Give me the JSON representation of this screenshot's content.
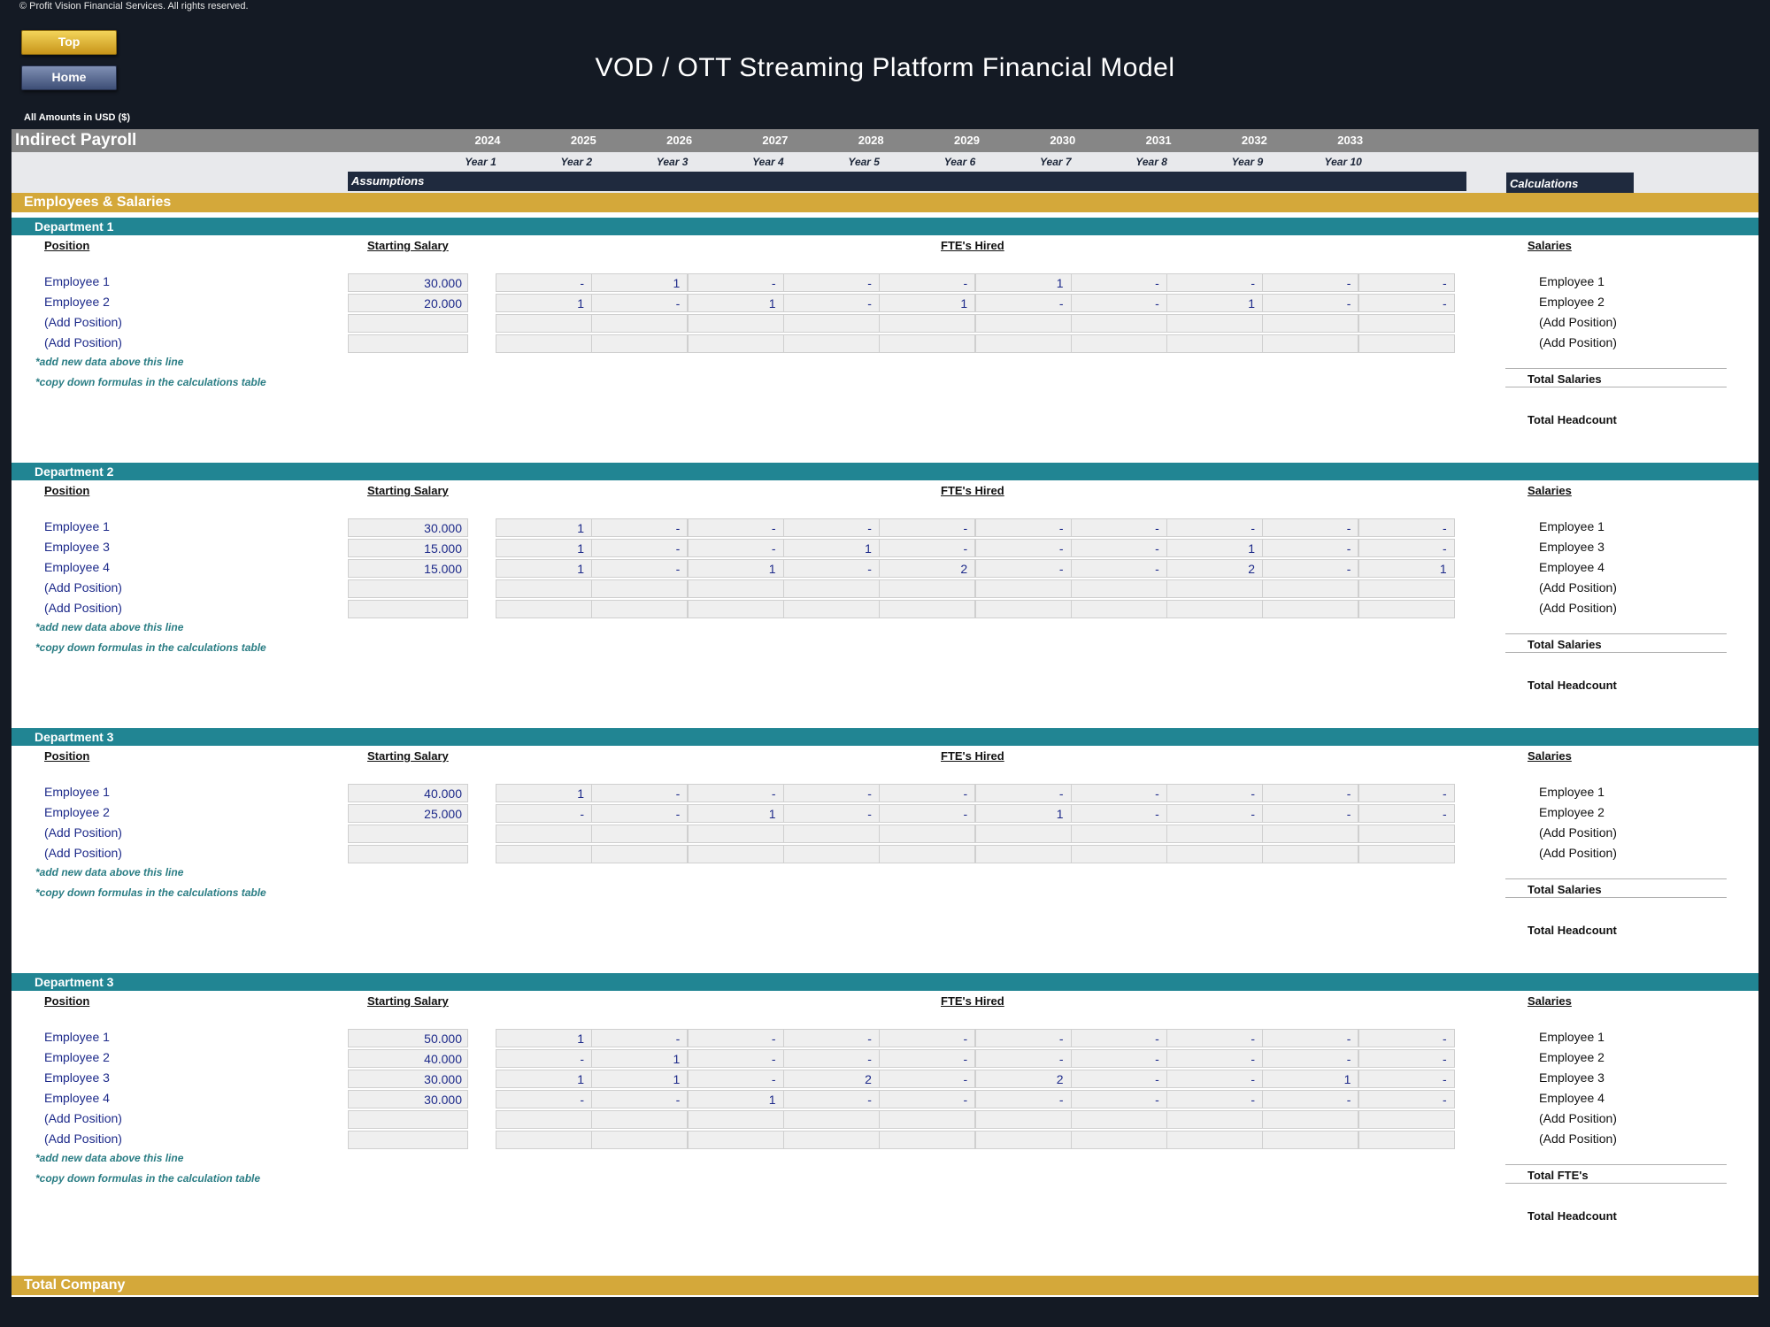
{
  "copyright": "© Profit Vision Financial Services. All rights reserved.",
  "buttons": {
    "top": "Top",
    "home": "Home"
  },
  "title": "VOD / OTT Streaming Platform Financial Model",
  "amounts_note": "All Amounts in  USD ($)",
  "sheet": {
    "name": "Indirect Payroll",
    "years": [
      "2024",
      "2025",
      "2026",
      "2027",
      "2028",
      "2029",
      "2030",
      "2031",
      "2032",
      "2033"
    ],
    "year_labels": [
      "Year 1",
      "Year 2",
      "Year 3",
      "Year 4",
      "Year 5",
      "Year 6",
      "Year 7",
      "Year 8",
      "Year 9",
      "Year 10"
    ],
    "assumptions_label": "Assumptions",
    "calculations_label": "Calculations"
  },
  "section_title": "Employees & Salaries",
  "column_headers": {
    "position": "Position",
    "starting_salary": "Starting Salary",
    "ftes_hired": "FTE's Hired",
    "salaries": "Salaries"
  },
  "departments": [
    {
      "name": "Department 1",
      "rows": [
        {
          "position": "Employee 1",
          "salary": "30.000",
          "fte": [
            "-",
            "1",
            "-",
            "-",
            "-",
            "1",
            "-",
            "-",
            "-",
            "-"
          ]
        },
        {
          "position": "Employee 2",
          "salary": "20.000",
          "fte": [
            "1",
            "-",
            "1",
            "-",
            "1",
            "-",
            "-",
            "1",
            "-",
            "-"
          ]
        },
        {
          "position": "(Add Position)",
          "salary": "",
          "fte": [
            "",
            "",
            "",
            "",
            "",
            "",
            "",
            "",
            "",
            ""
          ]
        },
        {
          "position": "(Add Position)",
          "salary": "",
          "fte": [
            "",
            "",
            "",
            "",
            "",
            "",
            "",
            "",
            "",
            ""
          ]
        }
      ],
      "notes": [
        "*add new data above this line",
        "*copy down formulas in the calculations table"
      ],
      "total_label": "Total Salaries",
      "headcount_label": "Total Headcount"
    },
    {
      "name": "Department 2",
      "rows": [
        {
          "position": "Employee 1",
          "salary": "30.000",
          "fte": [
            "1",
            "-",
            "-",
            "-",
            "-",
            "-",
            "-",
            "-",
            "-",
            "-"
          ]
        },
        {
          "position": "Employee 3",
          "salary": "15.000",
          "fte": [
            "1",
            "-",
            "-",
            "1",
            "-",
            "-",
            "-",
            "1",
            "-",
            "-"
          ]
        },
        {
          "position": "Employee 4",
          "salary": "15.000",
          "fte": [
            "1",
            "-",
            "1",
            "-",
            "2",
            "-",
            "-",
            "2",
            "-",
            "1"
          ]
        },
        {
          "position": "(Add Position)",
          "salary": "",
          "fte": [
            "",
            "",
            "",
            "",
            "",
            "",
            "",
            "",
            "",
            ""
          ]
        },
        {
          "position": "(Add Position)",
          "salary": "",
          "fte": [
            "",
            "",
            "",
            "",
            "",
            "",
            "",
            "",
            "",
            ""
          ]
        }
      ],
      "notes": [
        "*add new data above this line",
        "*copy down formulas in the calculations table"
      ],
      "total_label": "Total Salaries",
      "headcount_label": "Total Headcount"
    },
    {
      "name": "Department 3",
      "rows": [
        {
          "position": "Employee 1",
          "salary": "40.000",
          "fte": [
            "1",
            "-",
            "-",
            "-",
            "-",
            "-",
            "-",
            "-",
            "-",
            "-"
          ]
        },
        {
          "position": "Employee 2",
          "salary": "25.000",
          "fte": [
            "-",
            "-",
            "1",
            "-",
            "-",
            "1",
            "-",
            "-",
            "-",
            "-"
          ]
        },
        {
          "position": "(Add Position)",
          "salary": "",
          "fte": [
            "",
            "",
            "",
            "",
            "",
            "",
            "",
            "",
            "",
            ""
          ]
        },
        {
          "position": "(Add Position)",
          "salary": "",
          "fte": [
            "",
            "",
            "",
            "",
            "",
            "",
            "",
            "",
            "",
            ""
          ]
        }
      ],
      "notes": [
        "*add new data above this line",
        "*copy down formulas in the calculations table"
      ],
      "total_label": "Total Salaries",
      "headcount_label": "Total Headcount"
    },
    {
      "name": "Department 3",
      "rows": [
        {
          "position": "Employee 1",
          "salary": "50.000",
          "fte": [
            "1",
            "-",
            "-",
            "-",
            "-",
            "-",
            "-",
            "-",
            "-",
            "-"
          ]
        },
        {
          "position": "Employee 2",
          "salary": "40.000",
          "fte": [
            "-",
            "1",
            "-",
            "-",
            "-",
            "-",
            "-",
            "-",
            "-",
            "-"
          ]
        },
        {
          "position": "Employee 3",
          "salary": "30.000",
          "fte": [
            "1",
            "1",
            "-",
            "2",
            "-",
            "2",
            "-",
            "-",
            "1",
            "-"
          ]
        },
        {
          "position": "Employee 4",
          "salary": "30.000",
          "fte": [
            "-",
            "-",
            "1",
            "-",
            "-",
            "-",
            "-",
            "-",
            "-",
            "-"
          ]
        },
        {
          "position": "(Add Position)",
          "salary": "",
          "fte": [
            "",
            "",
            "",
            "",
            "",
            "",
            "",
            "",
            "",
            ""
          ]
        },
        {
          "position": "(Add Position)",
          "salary": "",
          "fte": [
            "",
            "",
            "",
            "",
            "",
            "",
            "",
            "",
            "",
            ""
          ]
        }
      ],
      "notes": [
        "*add new data above this line",
        "*copy down formulas in the calculation table"
      ],
      "total_label": "Total FTE's",
      "headcount_label": "Total Headcount"
    }
  ],
  "total_company": "Total Company"
}
